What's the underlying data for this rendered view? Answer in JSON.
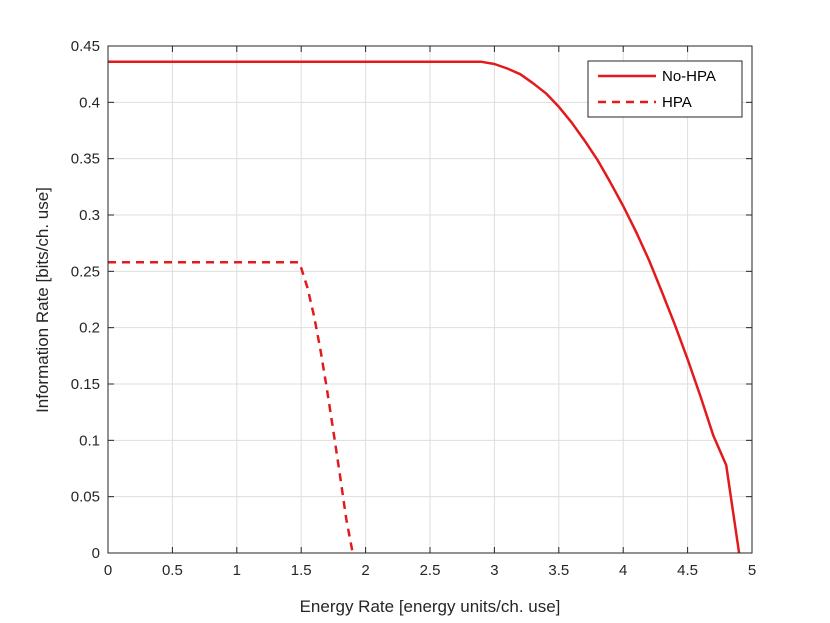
{
  "chart_data": {
    "type": "line",
    "title": "",
    "xlabel": "Energy Rate [energy units/ch. use]",
    "ylabel": "Information Rate [bits/ch. use]",
    "xlim": [
      0,
      5
    ],
    "ylim": [
      0,
      0.45
    ],
    "grid": true,
    "legend_position": "top-right",
    "x_ticks": [
      0,
      0.5,
      1,
      1.5,
      2,
      2.5,
      3,
      3.5,
      4,
      4.5,
      5
    ],
    "x_tick_labels": [
      "0",
      "0.5",
      "1",
      "1.5",
      "2",
      "2.5",
      "3",
      "3.5",
      "4",
      "4.5",
      "5"
    ],
    "y_ticks": [
      0,
      0.05,
      0.1,
      0.15,
      0.2,
      0.25,
      0.3,
      0.35,
      0.4,
      0.45
    ],
    "y_tick_labels": [
      "0",
      "0.05",
      "0.1",
      "0.15",
      "0.2",
      "0.25",
      "0.3",
      "0.35",
      "0.4",
      "0.45"
    ],
    "series": [
      {
        "name": "No-HPA",
        "style": "solid",
        "color": "#e31a1c",
        "x": [
          0,
          2.9,
          3.0,
          3.1,
          3.2,
          3.3,
          3.4,
          3.5,
          3.6,
          3.7,
          3.8,
          3.9,
          4.0,
          4.1,
          4.2,
          4.3,
          4.4,
          4.5,
          4.6,
          4.7,
          4.8,
          4.9
        ],
        "y": [
          0.436,
          0.436,
          0.434,
          0.43,
          0.425,
          0.417,
          0.408,
          0.396,
          0.382,
          0.366,
          0.349,
          0.329,
          0.308,
          0.285,
          0.26,
          0.232,
          0.203,
          0.172,
          0.139,
          0.104,
          0.078,
          0.0
        ]
      },
      {
        "name": "HPA",
        "style": "dashed",
        "color": "#e31a1c",
        "x": [
          0,
          1.48,
          1.5,
          1.55,
          1.6,
          1.65,
          1.7,
          1.75,
          1.8,
          1.85,
          1.9
        ],
        "y": [
          0.258,
          0.258,
          0.253,
          0.235,
          0.21,
          0.18,
          0.145,
          0.108,
          0.07,
          0.03,
          0.0
        ]
      }
    ]
  }
}
